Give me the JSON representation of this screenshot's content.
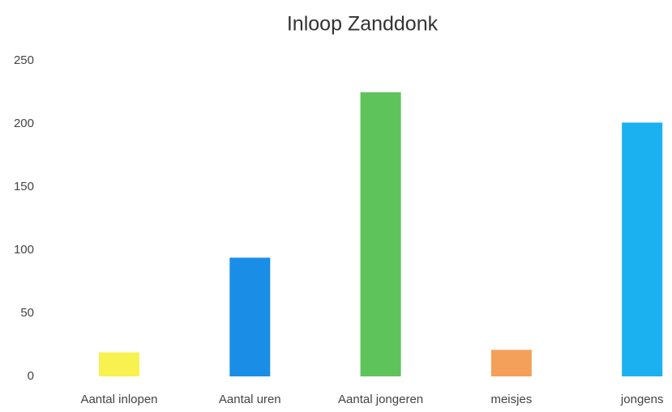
{
  "chart_data": {
    "type": "bar",
    "title": "Inloop Zanddonk",
    "categories": [
      "Aantal inlopen",
      "Aantal uren",
      "Aantal jongeren",
      "meisjes",
      "jongens"
    ],
    "values": [
      19,
      94,
      225,
      21,
      201
    ],
    "colors": [
      "#f7f250",
      "#1a8de6",
      "#5ec35b",
      "#f5a05a",
      "#1bb0f0"
    ],
    "ylim": [
      0,
      250
    ],
    "yticks": [
      0,
      50,
      100,
      150,
      200,
      250
    ],
    "grid": false
  }
}
